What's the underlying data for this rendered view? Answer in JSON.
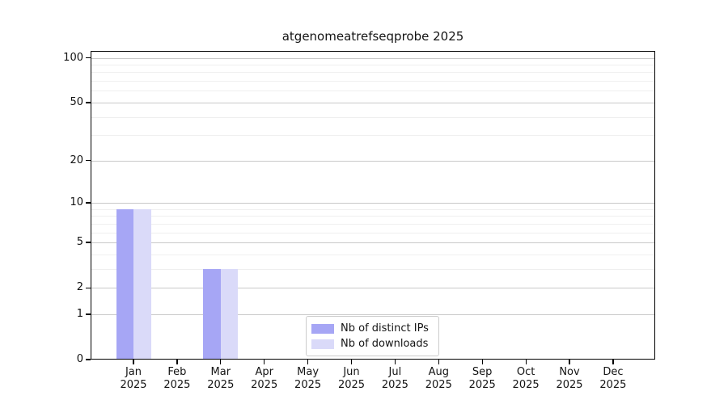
{
  "title": "atgenomeatrefseqprobe 2025",
  "chart_data": {
    "type": "bar",
    "title": "atgenomeatrefseqprobe 2025",
    "categories": [
      "Jan",
      "Feb",
      "Mar",
      "Apr",
      "May",
      "Jun",
      "Jul",
      "Aug",
      "Sep",
      "Oct",
      "Nov",
      "Dec"
    ],
    "category_year": "2025",
    "series": [
      {
        "name": "Nb of distinct IPs",
        "color": "#a6a6f5",
        "values": [
          9,
          0,
          3,
          0,
          0,
          0,
          0,
          0,
          0,
          0,
          0,
          0
        ]
      },
      {
        "name": "Nb of downloads",
        "color": "#dadaf9",
        "values": [
          9,
          0,
          3,
          0,
          0,
          0,
          0,
          0,
          0,
          0,
          0,
          0
        ]
      }
    ],
    "y_axis": {
      "scale": "log1p",
      "ticks": [
        0,
        1,
        2,
        5,
        10,
        20,
        50,
        100
      ],
      "minor_gridlines": [
        3,
        4,
        6,
        7,
        8,
        9,
        30,
        40,
        60,
        70,
        80,
        90
      ],
      "ylim": [
        0,
        111
      ]
    },
    "x_axis": {
      "label": "",
      "tick_style": "month-over-year"
    },
    "legend": {
      "position": "lower center",
      "entries": [
        "Nb of distinct IPs",
        "Nb of downloads"
      ]
    },
    "grid": "on",
    "colors": {
      "major_grid": "#c9c9c9",
      "minor_grid": "#efefef",
      "axis": "#000000",
      "background": "#ffffff"
    }
  }
}
